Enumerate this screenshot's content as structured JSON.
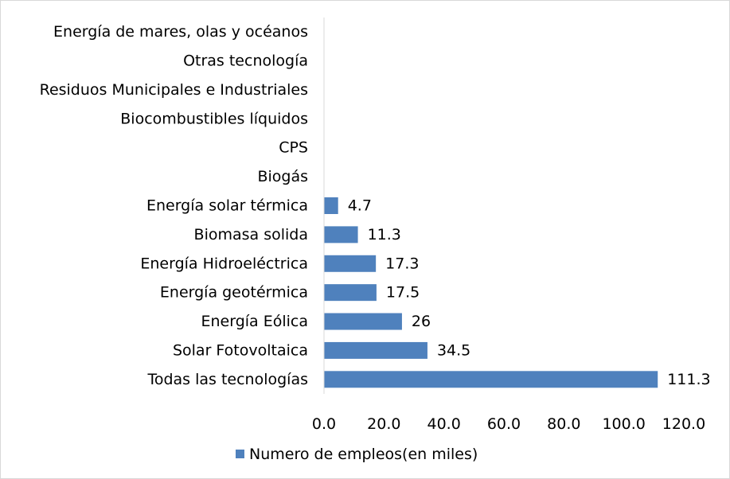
{
  "chart_data": {
    "type": "bar",
    "orientation": "horizontal",
    "categories": [
      "Todas las tecnologías",
      "Solar Fotovoltaica",
      "Energía Eólica",
      "Energía geotérmica",
      "Energía Hidroeléctrica",
      "Biomasa solida",
      "Energía solar térmica",
      "Biogás",
      "CPS",
      "Biocombustibles líquidos",
      "Residuos Municipales e Industriales",
      "Otras tecnología",
      "Energía de mares, olas y océanos"
    ],
    "series": [
      {
        "name": "Numero de empleos(en miles)",
        "values": [
          111.3,
          34.5,
          26,
          17.5,
          17.3,
          11.3,
          4.7,
          null,
          null,
          null,
          null,
          null,
          null
        ],
        "data_labels": [
          "111.3",
          "34.5",
          "26",
          "17.5",
          "17.3",
          "11.3",
          "4.7",
          "",
          "",
          "",
          "",
          "",
          ""
        ]
      }
    ],
    "xlim": [
      0,
      120
    ],
    "x_ticks": [
      "0.0",
      "20.0",
      "40.0",
      "60.0",
      "80.0",
      "100.0",
      "120.0"
    ],
    "title": "",
    "xlabel": "",
    "ylabel": "",
    "grid": false,
    "legend_position": "bottom",
    "colors": {
      "bar": "#4f81bd",
      "axis": "#d9d9d9"
    }
  }
}
